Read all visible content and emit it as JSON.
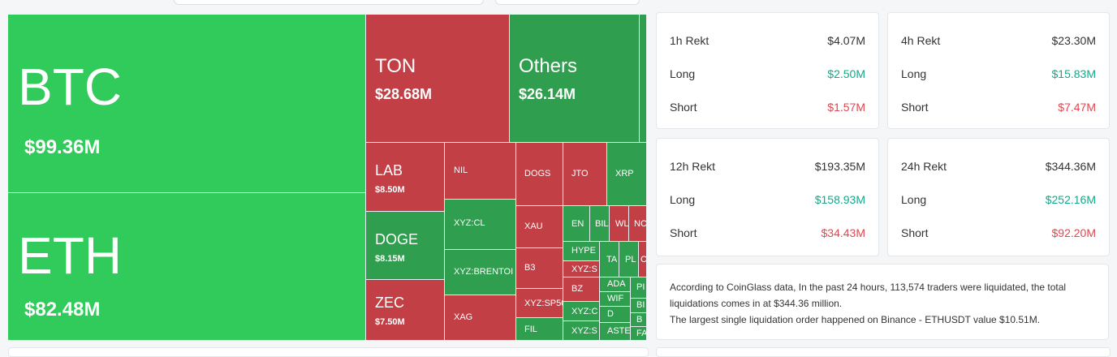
{
  "treemap": {
    "btc": {
      "symbol": "BTC",
      "value": "$99.36M"
    },
    "eth": {
      "symbol": "ETH",
      "value": "$82.48M"
    },
    "ton": {
      "symbol": "TON",
      "value": "$28.68M"
    },
    "others": {
      "symbol": "Others",
      "value": "$26.14M"
    },
    "lab": {
      "symbol": "LAB",
      "value": "$8.50M"
    },
    "doge": {
      "symbol": "DOGE",
      "value": "$8.15M"
    },
    "zec": {
      "symbol": "ZEC",
      "value": "$7.50M"
    },
    "small": {
      "nil": "NIL",
      "xyz_cl": "XYZ:CL",
      "xyz_brentoil": "XYZ:BRENTOI",
      "xag": "XAG",
      "dogs": "DOGS",
      "jto": "JTO",
      "xrp": "XRP",
      "xau": "XAU",
      "b3": "B3",
      "xyz_sp500": "XYZ:SP50",
      "fil": "FIL",
      "ena": "EN",
      "bil": "BIL",
      "wl": "WL",
      "nc": "NC",
      "hype": "HYPE",
      "xyz_s1": "XYZ:S",
      "bz": "BZ",
      "xyz_c": "XYZ:C",
      "xyz_s2": "XYZ:S",
      "ta": "TA",
      "pl": "PL",
      "c": "C",
      "ada": "ADA",
      "wif": "WIF",
      "d": "D",
      "aste": "ASTE",
      "pi": "PI",
      "bi": "BI",
      "b": "B",
      "fa": "FA"
    }
  },
  "stats": [
    {
      "title": "1h Rekt",
      "total": "$4.07M",
      "long_label": "Long",
      "long": "$2.50M",
      "short_label": "Short",
      "short": "$1.57M"
    },
    {
      "title": "4h Rekt",
      "total": "$23.30M",
      "long_label": "Long",
      "long": "$15.83M",
      "short_label": "Short",
      "short": "$7.47M"
    },
    {
      "title": "12h Rekt",
      "total": "$193.35M",
      "long_label": "Long",
      "long": "$158.93M",
      "short_label": "Short",
      "short": "$34.43M"
    },
    {
      "title": "24h Rekt",
      "total": "$344.36M",
      "long_label": "Long",
      "long": "$252.16M",
      "short_label": "Short",
      "short": "$92.20M"
    }
  ],
  "summary": {
    "line1": "According to CoinGlass data, In the past 24 hours, 113,574 traders were liquidated, the total liquidations comes in at $344.36 million.",
    "line2": "The largest single liquidation order happened on Binance - ETHUSDT value $10.51M."
  },
  "colors": {
    "long": "#14a889",
    "short": "#e2464f",
    "up": "#30cb5a",
    "down": "#c23f46"
  }
}
